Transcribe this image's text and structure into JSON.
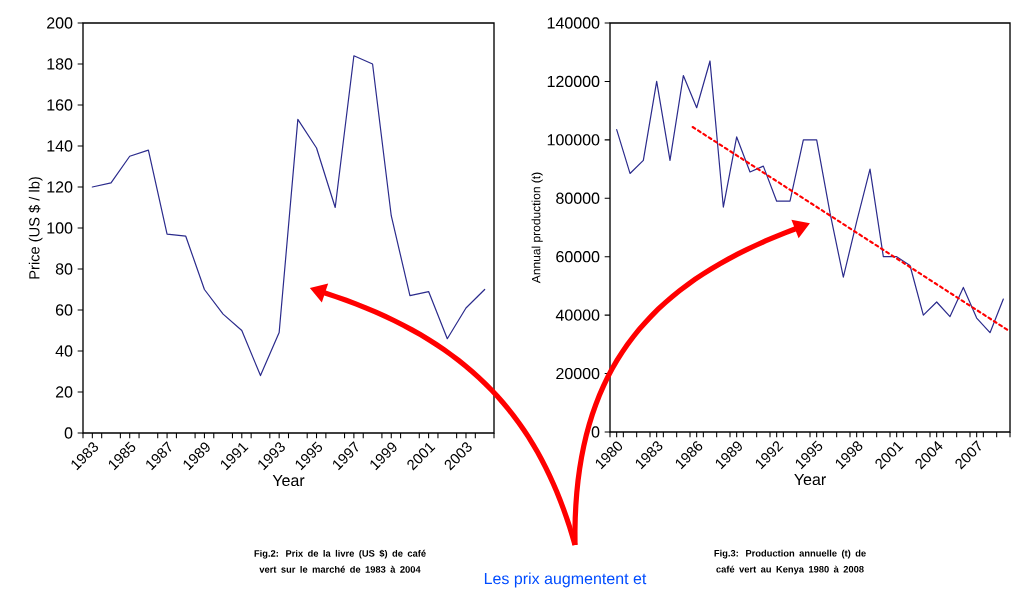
{
  "chart_data": [
    {
      "type": "line",
      "xlabel": "Year",
      "ylabel": "Price (US $ / lb)",
      "annotations": [
        "Fig.2: Prix de la livre (US $) de café vert sur le marché de 1983 à 2004",
        "Les prix augmentent et"
      ],
      "x": [
        1983,
        1984,
        1985,
        1986,
        1987,
        1988,
        1989,
        1990,
        1991,
        1992,
        1993,
        1994,
        1995,
        1996,
        1997,
        1998,
        1999,
        2000,
        2001,
        2002,
        2003,
        2004
      ],
      "series": [
        {
          "color": "#2b2b8c",
          "values": [
            120,
            122,
            135,
            138,
            97,
            96,
            70,
            58,
            50,
            28,
            49,
            153,
            139,
            110,
            184,
            180,
            106,
            67,
            69,
            46,
            61,
            70
          ]
        }
      ],
      "xlim": [
        1982.5,
        2004.5
      ],
      "ylim": [
        0,
        200
      ],
      "yticks": [
        0,
        20,
        40,
        60,
        80,
        100,
        120,
        140,
        160,
        180,
        200
      ],
      "xticks": [
        1983,
        1985,
        1987,
        1989,
        1991,
        1993,
        1995,
        1997,
        1999,
        2001,
        2003,
        {
          "value": 1982.5,
          "label": null
        },
        {
          "value": 1983.5,
          "label": null
        },
        {
          "value": 1984.5,
          "label": null
        },
        {
          "value": 1985.5,
          "label": null
        },
        {
          "value": 1986.5,
          "label": null
        },
        {
          "value": 1987.5,
          "label": null
        },
        {
          "value": 1988.5,
          "label": null
        },
        {
          "value": 1989.5,
          "label": null
        },
        {
          "value": 1990.5,
          "label": null
        },
        {
          "value": 1991.5,
          "label": null
        },
        {
          "value": 1992.5,
          "label": null
        },
        {
          "value": 1993.5,
          "label": null
        },
        {
          "value": 1994.5,
          "label": null
        },
        {
          "value": 1995.5,
          "label": null
        },
        {
          "value": 1996.5,
          "label": null
        },
        {
          "value": 1997.5,
          "label": null
        },
        {
          "value": 1998.5,
          "label": null
        },
        {
          "value": 1999.5,
          "label": null
        },
        {
          "value": 2000.5,
          "label": null
        },
        {
          "value": 2001.5,
          "label": null
        },
        {
          "value": 2002.5,
          "label": null
        },
        {
          "value": 2003.5,
          "label": null
        },
        {
          "value": 2004.5,
          "label": null
        }
      ]
    },
    {
      "type": "line",
      "xlabel": "Year",
      "ylabel": "Annual production (t)",
      "annotations": [
        "Fig.3: Production annuelle (t) de café vert au Kenya 1980 à 2008"
      ],
      "x": [
        1980,
        1981,
        1982,
        1983,
        1984,
        1985,
        1986,
        1987,
        1988,
        1989,
        1990,
        1991,
        1992,
        1993,
        1994,
        1995,
        1996,
        1997,
        1998,
        1999,
        2000,
        2001,
        2002,
        2003,
        2004,
        2005,
        2006,
        2007,
        2008,
        2009
      ],
      "series": [
        {
          "color": "#2b2b8c",
          "values": [
            103500,
            88500,
            93000,
            120000,
            93000,
            122000,
            111000,
            127000,
            77000,
            101000,
            89000,
            91000,
            79000,
            79000,
            100000,
            100000,
            75000,
            53000,
            72000,
            90000,
            60000,
            60000,
            57000,
            40000,
            44500,
            39500,
            49500,
            39000,
            34000,
            45500
          ]
        },
        {
          "type": "line",
          "color": "#ff0000",
          "line_style": "dotted",
          "x": [
            1985.7,
            2009.5
          ],
          "values": [
            104400,
            34400
          ]
        }
      ],
      "xlim": [
        1979.5,
        2009.5
      ],
      "ylim": [
        0,
        140000
      ],
      "yticks": [
        0,
        20000,
        40000,
        60000,
        80000,
        100000,
        120000,
        140000
      ],
      "xticks": [
        1980,
        1983,
        1986,
        1989,
        1992,
        1995,
        1998,
        2001,
        2004,
        2007,
        {
          "value": 1979.5,
          "label": null
        },
        {
          "value": 1980.5,
          "label": null
        },
        {
          "value": 1981.5,
          "label": null
        },
        {
          "value": 1982.5,
          "label": null
        },
        {
          "value": 1983.5,
          "label": null
        },
        {
          "value": 1984.5,
          "label": null
        },
        {
          "value": 1985.5,
          "label": null
        },
        {
          "value": 1986.5,
          "label": null
        },
        {
          "value": 1987.5,
          "label": null
        },
        {
          "value": 1988.5,
          "label": null
        },
        {
          "value": 1989.5,
          "label": null
        },
        {
          "value": 1990.5,
          "label": null
        },
        {
          "value": 1991.5,
          "label": null
        },
        {
          "value": 1992.5,
          "label": null
        },
        {
          "value": 1993.5,
          "label": null
        },
        {
          "value": 1994.5,
          "label": null
        },
        {
          "value": 1995.5,
          "label": null
        },
        {
          "value": 1996.5,
          "label": null
        },
        {
          "value": 1997.5,
          "label": null
        },
        {
          "value": 1998.5,
          "label": null
        },
        {
          "value": 1999.5,
          "label": null
        },
        {
          "value": 2000.5,
          "label": null
        },
        {
          "value": 2001.5,
          "label": null
        },
        {
          "value": 2002.5,
          "label": null
        },
        {
          "value": 2003.5,
          "label": null
        },
        {
          "value": 2004.5,
          "label": null
        },
        {
          "value": 2005.5,
          "label": null
        },
        {
          "value": 2006.5,
          "label": null
        },
        {
          "value": 2007.5,
          "label": null
        },
        {
          "value": 2008.5,
          "label": null
        },
        {
          "value": 2009.5,
          "label": null
        }
      ]
    }
  ]
}
